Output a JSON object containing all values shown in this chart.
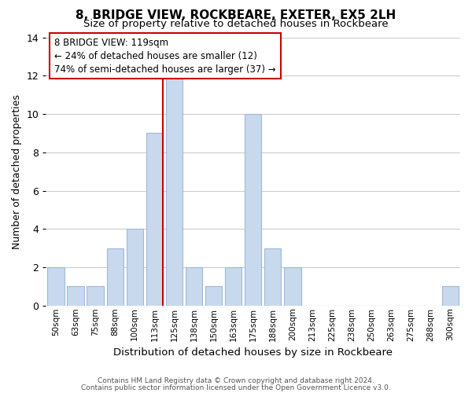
{
  "title": "8, BRIDGE VIEW, ROCKBEARE, EXETER, EX5 2LH",
  "subtitle": "Size of property relative to detached houses in Rockbeare",
  "xlabel": "Distribution of detached houses by size in Rockbeare",
  "ylabel": "Number of detached properties",
  "bar_labels": [
    "50sqm",
    "63sqm",
    "75sqm",
    "88sqm",
    "100sqm",
    "113sqm",
    "125sqm",
    "138sqm",
    "150sqm",
    "163sqm",
    "175sqm",
    "188sqm",
    "200sqm",
    "213sqm",
    "225sqm",
    "238sqm",
    "250sqm",
    "263sqm",
    "275sqm",
    "288sqm",
    "300sqm"
  ],
  "bar_values": [
    2,
    1,
    1,
    3,
    4,
    9,
    12,
    2,
    1,
    2,
    10,
    3,
    2,
    0,
    0,
    0,
    0,
    0,
    0,
    0,
    1
  ],
  "bar_color": "#c8d9ed",
  "bar_edge_color": "#a0b8d8",
  "marker_bin_index": 5,
  "marker_color": "#cc0000",
  "ylim": [
    0,
    14
  ],
  "yticks": [
    0,
    2,
    4,
    6,
    8,
    10,
    12,
    14
  ],
  "annotation_lines": [
    "8 BRIDGE VIEW: 119sqm",
    "← 24% of detached houses are smaller (12)",
    "74% of semi-detached houses are larger (37) →"
  ],
  "footnote1": "Contains HM Land Registry data © Crown copyright and database right 2024.",
  "footnote2": "Contains public sector information licensed under the Open Government Licence v3.0.",
  "background_color": "#ffffff",
  "grid_color": "#cccccc"
}
